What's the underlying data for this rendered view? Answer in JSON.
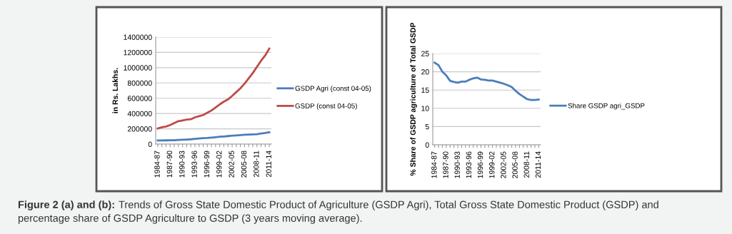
{
  "chart_data": [
    {
      "type": "line",
      "ylabel": "in Rs. Lakhs.",
      "categories": [
        "1984-87",
        null,
        null,
        "1987-90",
        null,
        null,
        "1990-93",
        null,
        null,
        "1993-96",
        null,
        null,
        "1996-99",
        null,
        null,
        "1999-02",
        null,
        null,
        "2002-05",
        null,
        null,
        "2005-08",
        null,
        null,
        "2008-11",
        null,
        null,
        "2011-14"
      ],
      "series": [
        {
          "name": "GSDP Agri (const 04-05)",
          "color": "#4a7ebb",
          "values": [
            48000,
            48000,
            49000,
            50000,
            51000,
            55000,
            58000,
            60000,
            63000,
            68000,
            73000,
            78000,
            80000,
            85000,
            90000,
            96000,
            100000,
            105000,
            110000,
            114000,
            118000,
            122000,
            125000,
            127000,
            130000,
            138000,
            145000,
            155000
          ]
        },
        {
          "name": "GSDP (const 04-05)",
          "color": "#be4b48",
          "values": [
            205000,
            220000,
            230000,
            250000,
            275000,
            300000,
            310000,
            320000,
            325000,
            350000,
            365000,
            380000,
            410000,
            440000,
            480000,
            520000,
            555000,
            585000,
            630000,
            680000,
            730000,
            790000,
            860000,
            930000,
            1010000,
            1090000,
            1160000,
            1250000
          ]
        }
      ],
      "ylim": [
        0,
        1400000
      ],
      "yticks": [
        0,
        200000,
        400000,
        600000,
        800000,
        1000000,
        1200000,
        1400000
      ],
      "grid": "y",
      "legend": "right",
      "marker": "none",
      "annotations": [
        "Figure 2 (a) and (b):",
        "Trends of Gross State Domestic Product of Agriculture (GSDP Agri), Total Gross State Domestic Product (GSDP) and percentage share of GSDP Agriculture to GSDP (3 years moving average)."
      ]
    },
    {
      "type": "line",
      "ylabel": "% Share of GSDP agriculture of Total GSDP",
      "categories": [
        "1984-87",
        null,
        null,
        "1987-90",
        null,
        null,
        "1990-93",
        null,
        null,
        "1993-96",
        null,
        null,
        "1996-99",
        null,
        null,
        "1999-02",
        null,
        null,
        "2002-05",
        null,
        null,
        "2005-08",
        null,
        null,
        "2008-11",
        null,
        null,
        "2011-14"
      ],
      "series": [
        {
          "name": "Share GSDP agri_GSDP",
          "color": "#4a7ebb",
          "values": [
            22.5,
            21.8,
            20,
            19,
            17.5,
            17.2,
            17,
            17.3,
            17.3,
            17.8,
            18.2,
            18.4,
            17.9,
            17.8,
            17.6,
            17.6,
            17.3,
            17,
            16.7,
            16.3,
            15.8,
            14.8,
            13.9,
            13.2,
            12.5,
            12.3,
            12.3,
            12.4
          ]
        }
      ],
      "ylim": [
        0,
        25
      ],
      "yticks": [
        0,
        5,
        10,
        15,
        20,
        25
      ],
      "grid": "y",
      "legend": "right",
      "marker": "none"
    }
  ]
}
